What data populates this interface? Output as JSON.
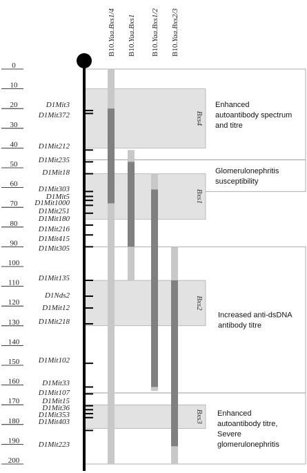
{
  "scale_ticks": [
    "0",
    "10",
    "20",
    "30",
    "40",
    "50",
    "60",
    "70",
    "80",
    "90",
    "100",
    "110",
    "120",
    "130",
    "140",
    "150",
    "160",
    "170",
    "180",
    "190",
    "200"
  ],
  "markers": [
    {
      "name": "D1Mit3",
      "pos": 21
    },
    {
      "name": "D1Mit372",
      "pos": 22.5
    },
    {
      "name": "D1Mit212",
      "pos": 41
    },
    {
      "name": "D1Mit235",
      "pos": 47
    },
    {
      "name": "D1Mit18",
      "pos": 53
    },
    {
      "name": "D1Mit303",
      "pos": 62
    },
    {
      "name": "D1Mit5",
      "pos": 64.5
    },
    {
      "name": "D1Mit1000",
      "pos": 66.5
    },
    {
      "name": "D1Mit251",
      "pos": 69
    },
    {
      "name": "D1Mit180",
      "pos": 73
    },
    {
      "name": "D1Mit216",
      "pos": 79
    },
    {
      "name": "D1Mit415",
      "pos": 84
    },
    {
      "name": "D1Mit305",
      "pos": 90
    },
    {
      "name": "D1Mit135",
      "pos": 107
    },
    {
      "name": "D1Nds2",
      "pos": 115
    },
    {
      "name": "D1Mit12",
      "pos": 121
    },
    {
      "name": "D1Mit218",
      "pos": 129
    },
    {
      "name": "D1Mit102",
      "pos": 149
    },
    {
      "name": "D1Mit33",
      "pos": 161
    },
    {
      "name": "D1Mit107",
      "pos": 164.5
    },
    {
      "name": "D1Mit15",
      "pos": 170.5
    },
    {
      "name": "D1Mit36",
      "pos": 172.5
    },
    {
      "name": "D1Mit353",
      "pos": 174.5
    },
    {
      "name": "D1Mit403",
      "pos": 176.5
    },
    {
      "name": "D1Mit223",
      "pos": 183
    }
  ],
  "strains": [
    {
      "prefix": "B10.",
      "name": "Yaa.Bxs1/4",
      "light": [
        0,
        200
      ],
      "dark": [
        20,
        68
      ]
    },
    {
      "prefix": "B10.",
      "name": "Yaa.Bxs1",
      "light": [
        41,
        107
      ],
      "dark": [
        47,
        90
      ]
    },
    {
      "prefix": "B10.",
      "name": "Yaa.Bxs1/2",
      "light": [
        53,
        163
      ],
      "dark": [
        61,
        161
      ]
    },
    {
      "prefix": "B10.",
      "name": "Yaa.Bxs2/3",
      "light": [
        90,
        200
      ],
      "dark": [
        107,
        191
      ]
    }
  ],
  "qtl_regions": [
    {
      "label": "Bxs4",
      "range": [
        10,
        40
      ]
    },
    {
      "label": "Bxs1",
      "range": [
        53,
        76
      ]
    },
    {
      "label": "Bxs2",
      "range": [
        107,
        130
      ]
    },
    {
      "label": "Bxs3",
      "range": [
        170,
        182
      ]
    }
  ],
  "phenotypes": [
    {
      "lines": [
        "Enhanced",
        "autoantibody spectrum",
        "and titre"
      ],
      "range": [
        0,
        46
      ]
    },
    {
      "lines": [
        "Glomerulonephritis",
        "susceptibility"
      ],
      "range": [
        46,
        62
      ]
    },
    {
      "lines": [
        "Increased anti-dsDNA",
        "antibody titre"
      ],
      "range": [
        90,
        164
      ]
    },
    {
      "lines": [
        "Enhanced",
        "autoantibody titre,",
        "Severe",
        "glomerulonephritis"
      ],
      "range": [
        164,
        200
      ]
    }
  ],
  "colors": {
    "axis": "#000000",
    "light_bar": "#c8c8c8",
    "dark_bar": "#808080",
    "qtl_fill": "#e2e2e2",
    "box_stroke": "#999999"
  }
}
